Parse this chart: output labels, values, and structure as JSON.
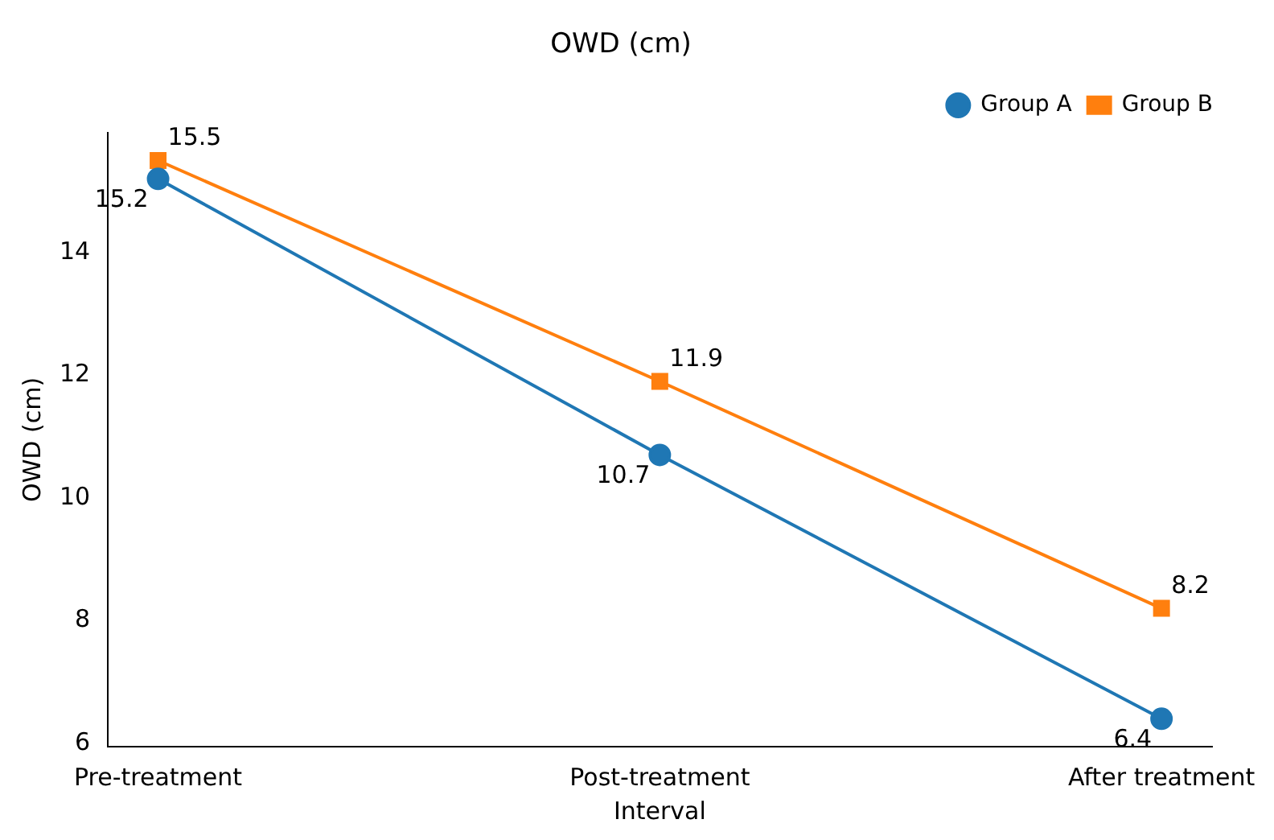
{
  "chart_data": {
    "type": "line",
    "title": "OWD (cm)",
    "xlabel": "Interval",
    "ylabel": "OWD (cm)",
    "categories": [
      "Pre-treatment",
      "Post-treatment",
      "After treatment"
    ],
    "series": [
      {
        "name": "Group A",
        "color": "#1f77b4",
        "marker": "circle",
        "values": [
          15.2,
          10.7,
          6.4
        ]
      },
      {
        "name": "Group B",
        "color": "#ff7f0e",
        "marker": "square",
        "values": [
          15.5,
          11.9,
          8.2
        ]
      }
    ],
    "ylim": [
      5.945,
      15.955
    ],
    "yticks": [
      6,
      8,
      10,
      12,
      14
    ],
    "grid": false,
    "legend": "top right",
    "data_labels": true,
    "line_style": "solid"
  }
}
